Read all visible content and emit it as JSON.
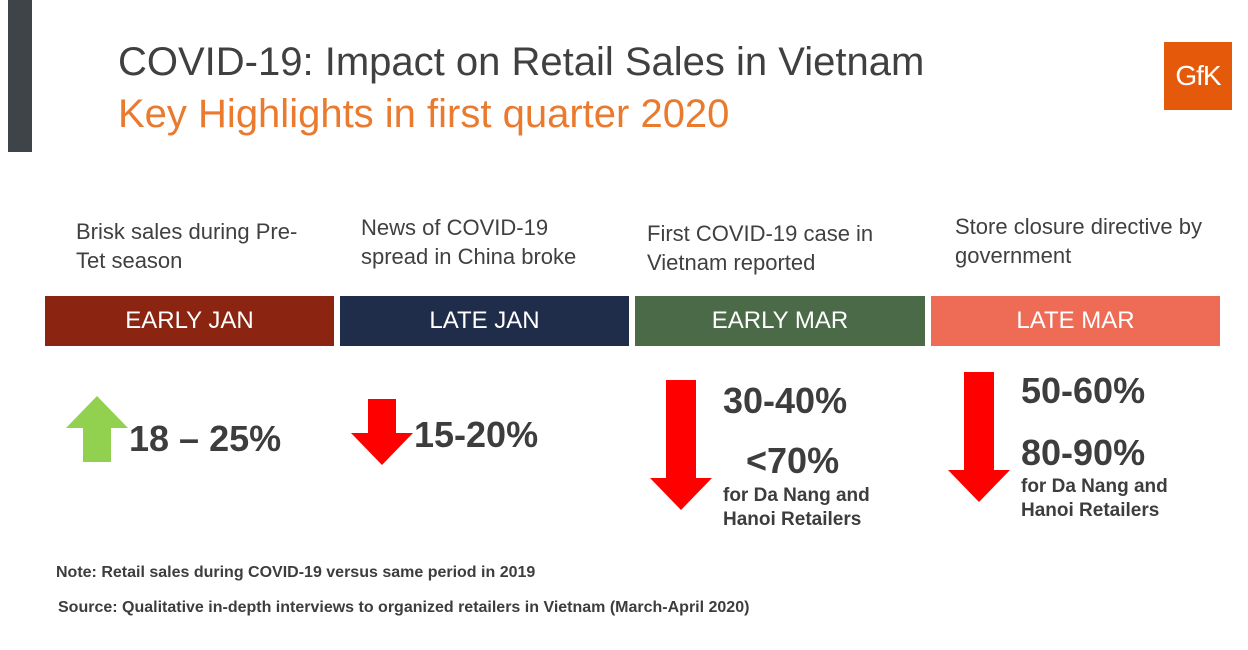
{
  "title": "COVID-19: Impact on Retail Sales in Vietnam",
  "subtitle": "Key Highlights in first quarter 2020",
  "logo_text": "GfK",
  "colors": {
    "title": "#404040",
    "subtitle": "#ea7a2e",
    "logo_bg": "#e55a0a",
    "up_arrow": "#92d050",
    "down_arrow": "#ff0000"
  },
  "periods": [
    {
      "label": "EARLY JAN",
      "event": "Brisk sales during Pre-Tet season",
      "color": "#8b2512",
      "direction": "up",
      "primary": "18 – 25%"
    },
    {
      "label": "LATE JAN",
      "event": "News of COVID-19 spread in China broke",
      "color": "#1f2d4a",
      "direction": "down",
      "primary": "15-20%"
    },
    {
      "label": "EARLY MAR",
      "event": "First COVID-19 case in Vietnam reported",
      "color": "#4b6a47",
      "direction": "down",
      "primary": "30-40%",
      "secondary": "<70%",
      "secondary_note": "for Da Nang and Hanoi Retailers"
    },
    {
      "label": "LATE MAR",
      "event": "Store closure directive by government",
      "color": "#ee6b55",
      "direction": "down",
      "primary": "50-60%",
      "secondary": "80-90%",
      "secondary_note": "for Da Nang and Hanoi Retailers"
    }
  ],
  "note": "Note: Retail sales during COVID-19 versus same period in 2019",
  "source": "Source: Qualitative in-depth interviews to organized retailers in Vietnam (March-April 2020)"
}
